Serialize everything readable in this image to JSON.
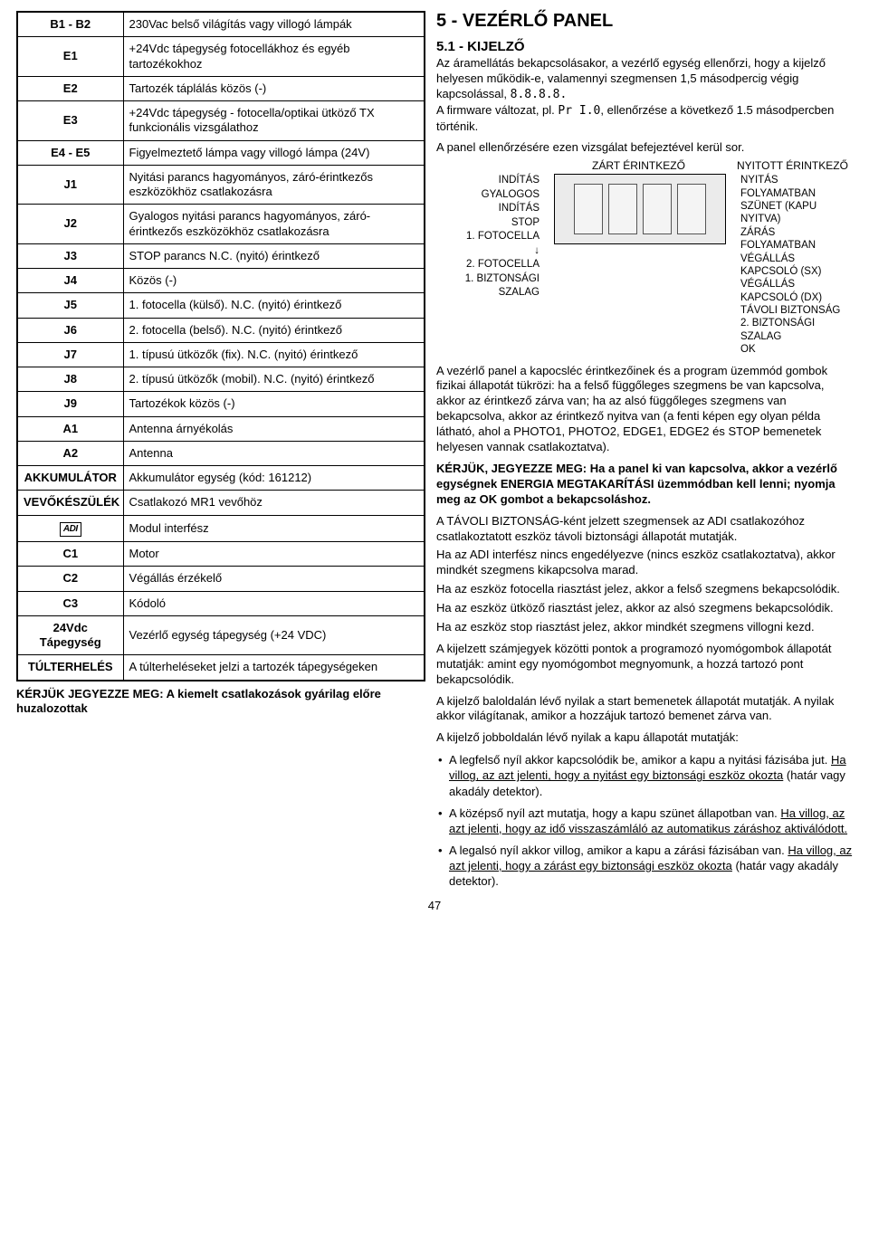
{
  "page_number": "47",
  "table_rows": [
    {
      "key": "B1 - B2",
      "val": "230Vac belső világítás vagy villogó lámpák"
    },
    {
      "key": "E1",
      "val": "+24Vdc tápegység fotocellákhoz és egyéb tartozékokhoz"
    },
    {
      "key": "E2",
      "val": "Tartozék táplálás közös (-)"
    },
    {
      "key": "E3",
      "val": "+24Vdc tápegység - fotocella/optikai ütköző TX funkcionális vizsgálathoz"
    },
    {
      "key": "E4 - E5",
      "val": "Figyelmeztető lámpa vagy villogó lámpa (24V)"
    },
    {
      "key": "J1",
      "val": "Nyitási parancs hagyományos, záró-érintkezős eszközökhöz csatlakozásra"
    },
    {
      "key": "J2",
      "val": "Gyalogos nyitási parancs hagyományos, záró-érintkezős eszközökhöz csatlakozásra"
    },
    {
      "key": "J3",
      "val": "STOP parancs N.C. (nyitó) érintkező"
    },
    {
      "key": "J4",
      "val": "Közös (-)"
    },
    {
      "key": "J5",
      "val": "1. fotocella (külső). N.C. (nyitó) érintkező"
    },
    {
      "key": "J6",
      "val": "2. fotocella (belső). N.C. (nyitó) érintkező"
    },
    {
      "key": "J7",
      "val": "1. típusú ütközők (fix). N.C. (nyitó) érintkező"
    },
    {
      "key": "J8",
      "val": "2. típusú ütközők (mobil). N.C. (nyitó) érintkező"
    },
    {
      "key": "J9",
      "val": "Tartozékok közös (-)"
    },
    {
      "key": "A1",
      "val": "Antenna árnyékolás"
    },
    {
      "key": "A2",
      "val": "Antenna"
    },
    {
      "key": "AKKUMULÁTOR",
      "val": "Akkumulátor egység (kód: 161212)"
    },
    {
      "key": "VEVŐKÉSZÜLÉK",
      "val": "Csatlakozó MR1 vevőhöz"
    },
    {
      "key": "__ADI__",
      "val": "Modul interfész"
    },
    {
      "key": "C1",
      "val": "Motor"
    },
    {
      "key": "C2",
      "val": "Végállás érzékelő"
    },
    {
      "key": "C3",
      "val": "Kódoló"
    },
    {
      "key": "24Vdc Tápegység",
      "val": "Vezérlő egység tápegység (+24 VDC)"
    },
    {
      "key": "TÚLTERHELÉS",
      "val": "A túlterheléseket jelzi a tartozék tápegységeken"
    }
  ],
  "left_note": "KÉRJÜK JEGYEZZE MEG: A kiemelt csatlakozások gyárilag előre huzalozottak",
  "right": {
    "h1": "5 - VEZÉRLŐ PANEL",
    "h2": "5.1 - KIJELZŐ",
    "intro1a": "Az áramellátás bekapcsolásakor, a vezérlő egység ellenőrzi, hogy a kijelző helyesen működik-e, valamennyi szegmensen 1,5 másodpercig végig kapcsolással, ",
    "intro1b": "8.8.8.8.",
    "intro2a": "A firmware változat, pl. ",
    "intro2b": "Pr I.0",
    "intro2c": ", ellenőrzése a következő 1.5 másodpercben történik.",
    "intro3": "A panel ellenőrzésére ezen vizsgálat befejeztével kerül sor.",
    "diag_top_left": "ZÁRT ÉRINTKEZŐ",
    "diag_top_right": "NYITOTT ÉRINTKEZŐ",
    "left_labels": [
      "INDÍTÁS",
      "GYALOGOS",
      "INDÍTÁS",
      "STOP",
      "1. FOTOCELLA",
      "↓",
      "2. FOTOCELLA",
      "1. BIZTONSÁGI",
      "SZALAG"
    ],
    "right_labels": [
      "NYITÁS",
      "FOLYAMATBAN",
      "SZÜNET (KAPU",
      "           NYITVA)",
      "ZÁRÁS",
      "FOLYAMATBAN",
      "VÉGÁLLÁS",
      "KAPCSOLÓ (SX)",
      "VÉGÁLLÁS",
      "KAPCSOLÓ (DX)",
      "TÁVOLI BIZTONSÁG",
      "2. BIZTONSÁGI",
      "SZALAG",
      "OK"
    ],
    "para_panel": "A vezérlő panel a kapocsléc érintkezőinek és a program üzemmód gombok fizikai állapotát tükrözi: ha a felső függőleges szegmens be van kapcsolva, akkor az érintkező zárva van; ha az alsó függőleges szegmens van bekapcsolva, akkor az érintkező nyitva van (a fenti képen egy olyan példa látható, ahol a PHOTO1, PHOTO2, EDGE1, EDGE2 és STOP bemenetek helyesen vannak csatlakoztatva).",
    "note_bold": "KÉRJÜK, JEGYEZZE MEG: Ha a panel ki van kapcsolva, akkor a vezérlő egységnek ENERGIA MEGTAKARÍTÁSI üzemmódban kell lenni; nyomja meg az OK gombot a bekapcsoláshoz.",
    "para_adi1": "A TÁVOLI BIZTONSÁG-ként jelzett szegmensek az ADI csatlakozóhoz csatlakoztatott eszköz távoli biztonsági állapotát mutatják.",
    "para_adi2": "Ha az ADI interfész nincs engedélyezve (nincs eszköz csatlakoztatva), akkor mindkét szegmens kikapcsolva marad.",
    "para_adi3": "Ha az eszköz fotocella riasztást jelez, akkor a felső szegmens bekapcsolódik.",
    "para_adi4": "Ha az eszköz ütköző riasztást jelez, akkor az alsó szegmens bekapcsolódik.",
    "para_adi5": "Ha az eszköz stop riasztást jelez, akkor mindkét szegmens villogni kezd.",
    "para_dots": "A kijelzett számjegyek közötti pontok a programozó nyomógombok állapotát mutatják: amint egy nyomógombot megnyomunk, a hozzá tartozó pont bekapcsolódik.",
    "para_leftarrow": "A kijelző baloldalán lévő nyilak a start bemenetek állapotát mutatják. A nyilak akkor világítanak, amikor a hozzájuk tartozó bemenet zárva van.",
    "para_rightarrow": "A kijelző jobboldalán lévő nyilak a kapu állapotát mutatják:",
    "bullets": [
      {
        "a": "A legfelső nyíl akkor kapcsolódik be, amikor a kapu a nyitási fázisába jut. ",
        "u": "Ha villog, az azt jelenti, hogy a nyitást egy biztonsági eszköz okozta",
        "b": " (határ vagy akadály detektor)."
      },
      {
        "a": "A középső nyíl azt mutatja, hogy a kapu szünet állapotban van. ",
        "u": "Ha villog, az azt jelenti, hogy az idő visszaszámláló az automatikus záráshoz aktiválódott.",
        "b": ""
      },
      {
        "a": "A legalsó nyíl akkor villog, amikor a kapu a zárási fázisában van. ",
        "u": "Ha villog, az azt jelenti, hogy a zárást egy biztonsági eszköz okozta",
        "b": " (határ vagy akadály detektor)."
      }
    ]
  }
}
